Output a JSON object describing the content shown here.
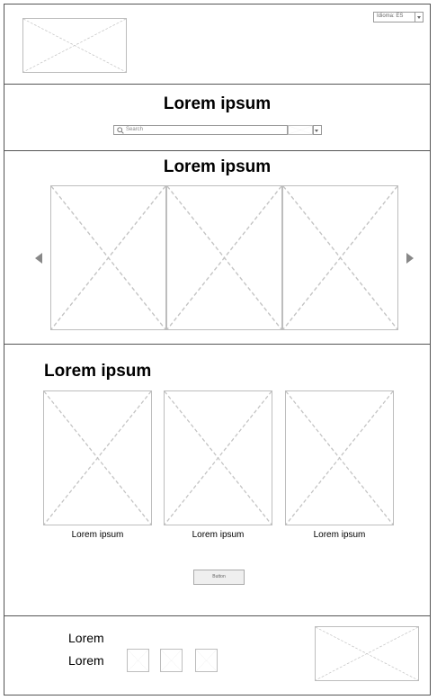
{
  "header": {
    "language_select": {
      "value": "Idioma: ES"
    }
  },
  "hero": {
    "title": "Lorem ipsum",
    "search": {
      "placeholder": "Search"
    }
  },
  "carousel": {
    "title": "Lorem ipsum"
  },
  "gallery": {
    "title": "Lorem ipsum",
    "items": [
      {
        "caption": "Lorem ipsum"
      },
      {
        "caption": "Lorem ipsum"
      },
      {
        "caption": "Lorem ipsum"
      }
    ],
    "button_label": "Button"
  },
  "footer": {
    "links": [
      "Lorem",
      "Lorem"
    ]
  },
  "colors": {
    "border": "#555555",
    "placeholder_line": "#c4c4c4",
    "arrow": "#888888"
  }
}
